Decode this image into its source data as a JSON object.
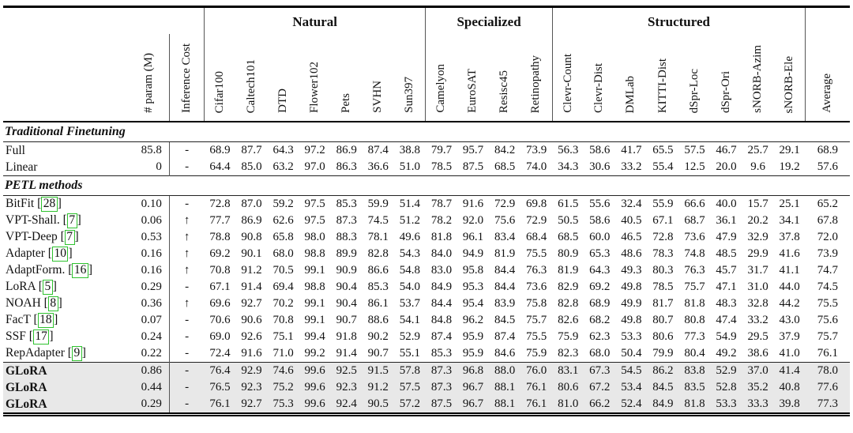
{
  "table": {
    "col_groups": [
      {
        "label": "Natural",
        "span": 7
      },
      {
        "label": "Specialized",
        "span": 4
      },
      {
        "label": "Structured",
        "span": 8
      }
    ],
    "columns": [
      "# param (M)",
      "Inference Cost",
      "Cifar100",
      "Caltech101",
      "DTD",
      "Flower102",
      "Pets",
      "SVHN",
      "Sun397",
      "Camelyon",
      "EuroSAT",
      "Resisc45",
      "Retinopathy",
      "Clevr-Count",
      "Clevr-Dist",
      "DMLab",
      "KITTI-Dist",
      "dSpr-Loc",
      "dSpr-Ori",
      "sNORB-Azim",
      "sNORB-Ele",
      "Average"
    ],
    "sections": [
      {
        "title": "Traditional Finetuning",
        "rows": [
          {
            "method": "Full",
            "cite": "",
            "param": "85.8",
            "cost": "-",
            "highlight": false,
            "values": [
              "68.9",
              "87.7",
              "64.3",
              "97.2",
              "86.9",
              "87.4",
              "38.8",
              "79.7",
              "95.7",
              "84.2",
              "73.9",
              "56.3",
              "58.6",
              "41.7",
              "65.5",
              "57.5",
              "46.7",
              "25.7",
              "29.1",
              "68.9"
            ]
          },
          {
            "method": "Linear",
            "cite": "",
            "param": "0",
            "cost": "-",
            "highlight": false,
            "values": [
              "64.4",
              "85.0",
              "63.2",
              "97.0",
              "86.3",
              "36.6",
              "51.0",
              "78.5",
              "87.5",
              "68.5",
              "74.0",
              "34.3",
              "30.6",
              "33.2",
              "55.4",
              "12.5",
              "20.0",
              "9.6",
              "19.2",
              "57.6"
            ]
          }
        ]
      },
      {
        "title": "PETL methods",
        "rows": [
          {
            "method": "BitFit",
            "cite": "28",
            "param": "0.10",
            "cost": "-",
            "highlight": false,
            "values": [
              "72.8",
              "87.0",
              "59.2",
              "97.5",
              "85.3",
              "59.9",
              "51.4",
              "78.7",
              "91.6",
              "72.9",
              "69.8",
              "61.5",
              "55.6",
              "32.4",
              "55.9",
              "66.6",
              "40.0",
              "15.7",
              "25.1",
              "65.2"
            ]
          },
          {
            "method": "VPT-Shall.",
            "cite": "7",
            "param": "0.06",
            "cost": "↑",
            "highlight": false,
            "values": [
              "77.7",
              "86.9",
              "62.6",
              "97.5",
              "87.3",
              "74.5",
              "51.2",
              "78.2",
              "92.0",
              "75.6",
              "72.9",
              "50.5",
              "58.6",
              "40.5",
              "67.1",
              "68.7",
              "36.1",
              "20.2",
              "34.1",
              "67.8"
            ]
          },
          {
            "method": "VPT-Deep",
            "cite": "7",
            "param": "0.53",
            "cost": "↑",
            "highlight": false,
            "values": [
              "78.8",
              "90.8",
              "65.8",
              "98.0",
              "88.3",
              "78.1",
              "49.6",
              "81.8",
              "96.1",
              "83.4",
              "68.4",
              "68.5",
              "60.0",
              "46.5",
              "72.8",
              "73.6",
              "47.9",
              "32.9",
              "37.8",
              "72.0"
            ]
          },
          {
            "method": "Adapter",
            "cite": "10",
            "param": "0.16",
            "cost": "↑",
            "highlight": false,
            "values": [
              "69.2",
              "90.1",
              "68.0",
              "98.8",
              "89.9",
              "82.8",
              "54.3",
              "84.0",
              "94.9",
              "81.9",
              "75.5",
              "80.9",
              "65.3",
              "48.6",
              "78.3",
              "74.8",
              "48.5",
              "29.9",
              "41.6",
              "73.9"
            ]
          },
          {
            "method": "AdaptForm.",
            "cite": "16",
            "param": "0.16",
            "cost": "↑",
            "highlight": false,
            "values": [
              "70.8",
              "91.2",
              "70.5",
              "99.1",
              "90.9",
              "86.6",
              "54.8",
              "83.0",
              "95.8",
              "84.4",
              "76.3",
              "81.9",
              "64.3",
              "49.3",
              "80.3",
              "76.3",
              "45.7",
              "31.7",
              "41.1",
              "74.7"
            ]
          },
          {
            "method": "LoRA",
            "cite": "5",
            "param": "0.29",
            "cost": "-",
            "highlight": false,
            "values": [
              "67.1",
              "91.4",
              "69.4",
              "98.8",
              "90.4",
              "85.3",
              "54.0",
              "84.9",
              "95.3",
              "84.4",
              "73.6",
              "82.9",
              "69.2",
              "49.8",
              "78.5",
              "75.7",
              "47.1",
              "31.0",
              "44.0",
              "74.5"
            ]
          },
          {
            "method": "NOAH",
            "cite": "8",
            "param": "0.36",
            "cost": "↑",
            "highlight": false,
            "values": [
              "69.6",
              "92.7",
              "70.2",
              "99.1",
              "90.4",
              "86.1",
              "53.7",
              "84.4",
              "95.4",
              "83.9",
              "75.8",
              "82.8",
              "68.9",
              "49.9",
              "81.7",
              "81.8",
              "48.3",
              "32.8",
              "44.2",
              "75.5"
            ]
          },
          {
            "method": "FacT",
            "cite": "18",
            "param": "0.07",
            "cost": "-",
            "highlight": false,
            "values": [
              "70.6",
              "90.6",
              "70.8",
              "99.1",
              "90.7",
              "88.6",
              "54.1",
              "84.8",
              "96.2",
              "84.5",
              "75.7",
              "82.6",
              "68.2",
              "49.8",
              "80.7",
              "80.8",
              "47.4",
              "33.2",
              "43.0",
              "75.6"
            ]
          },
          {
            "method": "SSF",
            "cite": "17",
            "param": "0.24",
            "cost": "-",
            "highlight": false,
            "values": [
              "69.0",
              "92.6",
              "75.1",
              "99.4",
              "91.8",
              "90.2",
              "52.9",
              "87.4",
              "95.9",
              "87.4",
              "75.5",
              "75.9",
              "62.3",
              "53.3",
              "80.6",
              "77.3",
              "54.9",
              "29.5",
              "37.9",
              "75.7"
            ]
          },
          {
            "method": "RepAdapter",
            "cite": "9",
            "param": "0.22",
            "cost": "-",
            "highlight": false,
            "values": [
              "72.4",
              "91.6",
              "71.0",
              "99.2",
              "91.4",
              "90.7",
              "55.1",
              "85.3",
              "95.9",
              "84.6",
              "75.9",
              "82.3",
              "68.0",
              "50.4",
              "79.9",
              "80.4",
              "49.2",
              "38.6",
              "41.0",
              "76.1"
            ]
          }
        ]
      },
      {
        "title": "",
        "rows": [
          {
            "method": "GLoRA",
            "cite": "",
            "param": "0.86",
            "cost": "-",
            "highlight": true,
            "values": [
              "76.4",
              "92.9",
              "74.6",
              "99.6",
              "92.5",
              "91.5",
              "57.8",
              "87.3",
              "96.8",
              "88.0",
              "76.0",
              "83.1",
              "67.3",
              "54.5",
              "86.2",
              "83.8",
              "52.9",
              "37.0",
              "41.4",
              "78.0"
            ]
          },
          {
            "method": "GLoRA",
            "cite": "",
            "param": "0.44",
            "cost": "-",
            "highlight": true,
            "values": [
              "76.5",
              "92.3",
              "75.2",
              "99.6",
              "92.3",
              "91.2",
              "57.5",
              "87.3",
              "96.7",
              "88.1",
              "76.1",
              "80.6",
              "67.2",
              "53.4",
              "84.5",
              "83.5",
              "52.8",
              "35.2",
              "40.8",
              "77.6"
            ]
          },
          {
            "method": "GLoRA",
            "cite": "",
            "param": "0.29",
            "cost": "-",
            "highlight": true,
            "values": [
              "76.1",
              "92.7",
              "75.3",
              "99.6",
              "92.4",
              "90.5",
              "57.2",
              "87.5",
              "96.7",
              "88.1",
              "76.1",
              "81.0",
              "66.2",
              "52.4",
              "84.9",
              "81.8",
              "53.3",
              "33.3",
              "39.8",
              "77.3"
            ]
          }
        ]
      }
    ],
    "colors": {
      "citation_box": "#2ec22e",
      "highlight_row_bg": "#e8e8e8",
      "rule": "#000000"
    }
  }
}
